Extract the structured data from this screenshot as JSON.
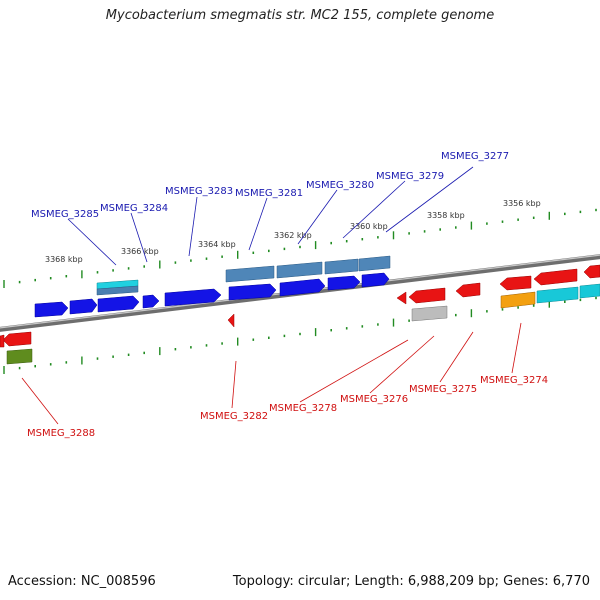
{
  "title": "Mycobacterium smegmatis str. MC2 155, complete genome",
  "footer": {
    "accession": "Accession: NC_008596",
    "summary": "Topology: circular; Length: 6,988,209 bp; Genes: 6,770"
  },
  "kbp_ticks": [
    "3368 kbp",
    "3366 kbp",
    "3364 kbp",
    "3362 kbp",
    "3360 kbp",
    "3358 kbp",
    "3356 kbp"
  ],
  "gene_labels_forward": [
    "MSMEG_3285",
    "MSMEG_3284",
    "MSMEG_3283",
    "MSMEG_3281",
    "MSMEG_3280",
    "MSMEG_3279",
    "MSMEG_3277"
  ],
  "gene_labels_reverse": [
    "MSMEG_3288",
    "MSMEG_3282",
    "MSMEG_3278",
    "MSMEG_3276",
    "MSMEG_3275",
    "MSMEG_3274"
  ],
  "colors": {
    "forward_label": "#1a1ab0",
    "reverse_label": "#d01010",
    "backbone": "#888888",
    "tick": "#228b22",
    "blue": "#1010e0",
    "steelblue": "#4a7fb0",
    "red": "#e81010",
    "cyan": "#10c8d8",
    "orange": "#f0a010",
    "grey": "#b8b8b8",
    "olive": "#5a8a1a"
  }
}
